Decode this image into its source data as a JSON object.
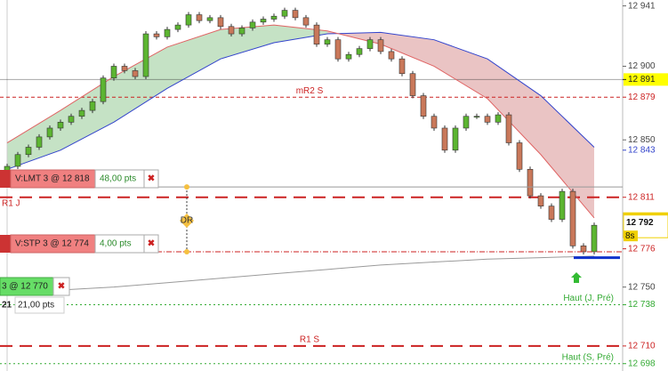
{
  "chart_data": {
    "type": "candlestick",
    "ylim": [
      12693,
      12945
    ],
    "yticks": [
      {
        "value": 12750,
        "label": "12 750"
      },
      {
        "value": 12850,
        "label": "12 850"
      },
      {
        "value": 12900,
        "label": "12 900"
      },
      {
        "value": 12941,
        "label": "12 941"
      }
    ],
    "open": [
      12828,
      12832,
      12840,
      12845,
      12852,
      12858,
      12862,
      12866,
      12870,
      12876,
      12892,
      12900,
      12897,
      12893,
      12922,
      12920,
      12925,
      12928,
      12935,
      12931,
      12933,
      12927,
      12922,
      12926,
      12930,
      12932,
      12934,
      12938,
      12933,
      12928,
      12915,
      12918,
      12905,
      12908,
      12912,
      12918,
      12910,
      12905,
      12895,
      12880,
      12866,
      12858,
      12843,
      12858,
      12866,
      12866,
      12862,
      12867,
      12848,
      12830,
      12812,
      12805,
      12796,
      12815,
      12778,
      12774
    ],
    "close": [
      12832,
      12840,
      12845,
      12852,
      12858,
      12862,
      12866,
      12870,
      12876,
      12892,
      12900,
      12897,
      12893,
      12922,
      12920,
      12925,
      12928,
      12935,
      12931,
      12933,
      12927,
      12922,
      12926,
      12930,
      12932,
      12934,
      12938,
      12933,
      12928,
      12915,
      12918,
      12905,
      12908,
      12912,
      12918,
      12910,
      12905,
      12895,
      12880,
      12866,
      12858,
      12843,
      12858,
      12866,
      12866,
      12862,
      12867,
      12848,
      12830,
      12812,
      12805,
      12796,
      12815,
      12778,
      12774,
      12792
    ],
    "up_color": "#5cb531",
    "down_color": "#c9785a",
    "moving_averages": {
      "x": [
        0,
        5,
        10,
        15,
        20,
        25,
        30,
        35,
        40,
        45,
        50,
        55
      ],
      "series": [
        {
          "color": "#3344cc",
          "values": [
            12830,
            12843,
            12862,
            12885,
            12905,
            12916,
            12922,
            12923,
            12918,
            12905,
            12880,
            12845
          ]
        },
        {
          "color": "#e06464",
          "values": [
            12848,
            12870,
            12893,
            12913,
            12925,
            12928,
            12924,
            12915,
            12900,
            12878,
            12840,
            12797
          ]
        },
        {
          "color": "#9a9a9a",
          "values": [
            12746,
            12748,
            12750,
            12753,
            12756,
            12759,
            12762,
            12765,
            12767,
            12769,
            12770,
            12771
          ]
        }
      ],
      "fill_up": "#3f9f3f",
      "fill_down": "#b83a3a"
    },
    "levels": [
      {
        "value": 12891,
        "label": "12 891",
        "color": "#222222",
        "background": "#ffff00",
        "style": "thin"
      },
      {
        "value": 12879,
        "label": "12 879",
        "name": "mR2 S",
        "name_position": "center",
        "color": "#cc2222",
        "style": "dash"
      },
      {
        "value": 12843,
        "label": "12 843",
        "color": "#3344cc",
        "style": "none"
      },
      {
        "value": 12811,
        "label": "12 811",
        "name": "R1 J",
        "name_position": "left",
        "color": "#cc2222",
        "style": "thick"
      },
      {
        "value": 12776,
        "label": "12 776",
        "color": "#cc2222",
        "style": "none"
      },
      {
        "value": 12738,
        "label": "12 738",
        "name": "Haut (J, Pré)",
        "name_position": "right",
        "color": "#33aa33",
        "style": "dot"
      },
      {
        "value": 12710,
        "label": "12 710",
        "name": "R1 S",
        "name_position": "center",
        "color": "#cc2222",
        "style": "thick"
      },
      {
        "value": 12698,
        "label": "12 698",
        "name": "Haut (S, Pré)",
        "name_position": "right",
        "color": "#33aa33",
        "style": "dot"
      }
    ],
    "last_price": {
      "value": 12792,
      "label": "12 792",
      "timer": "8s"
    },
    "orders": [
      {
        "price": 12818,
        "label": "V:LMT 3 @ 12 818",
        "distance": "48,00 pts",
        "color": "#f08080"
      },
      {
        "price": 12774,
        "label": "V:STP 3 @ 12 774",
        "distance": "4,00 pts",
        "color": "#f08080"
      },
      {
        "price": 12770,
        "label": "3 @ 12 770",
        "quantity": "21",
        "distance": "21,00 pts",
        "color": "#66dd66"
      }
    ],
    "marker": "DR"
  }
}
